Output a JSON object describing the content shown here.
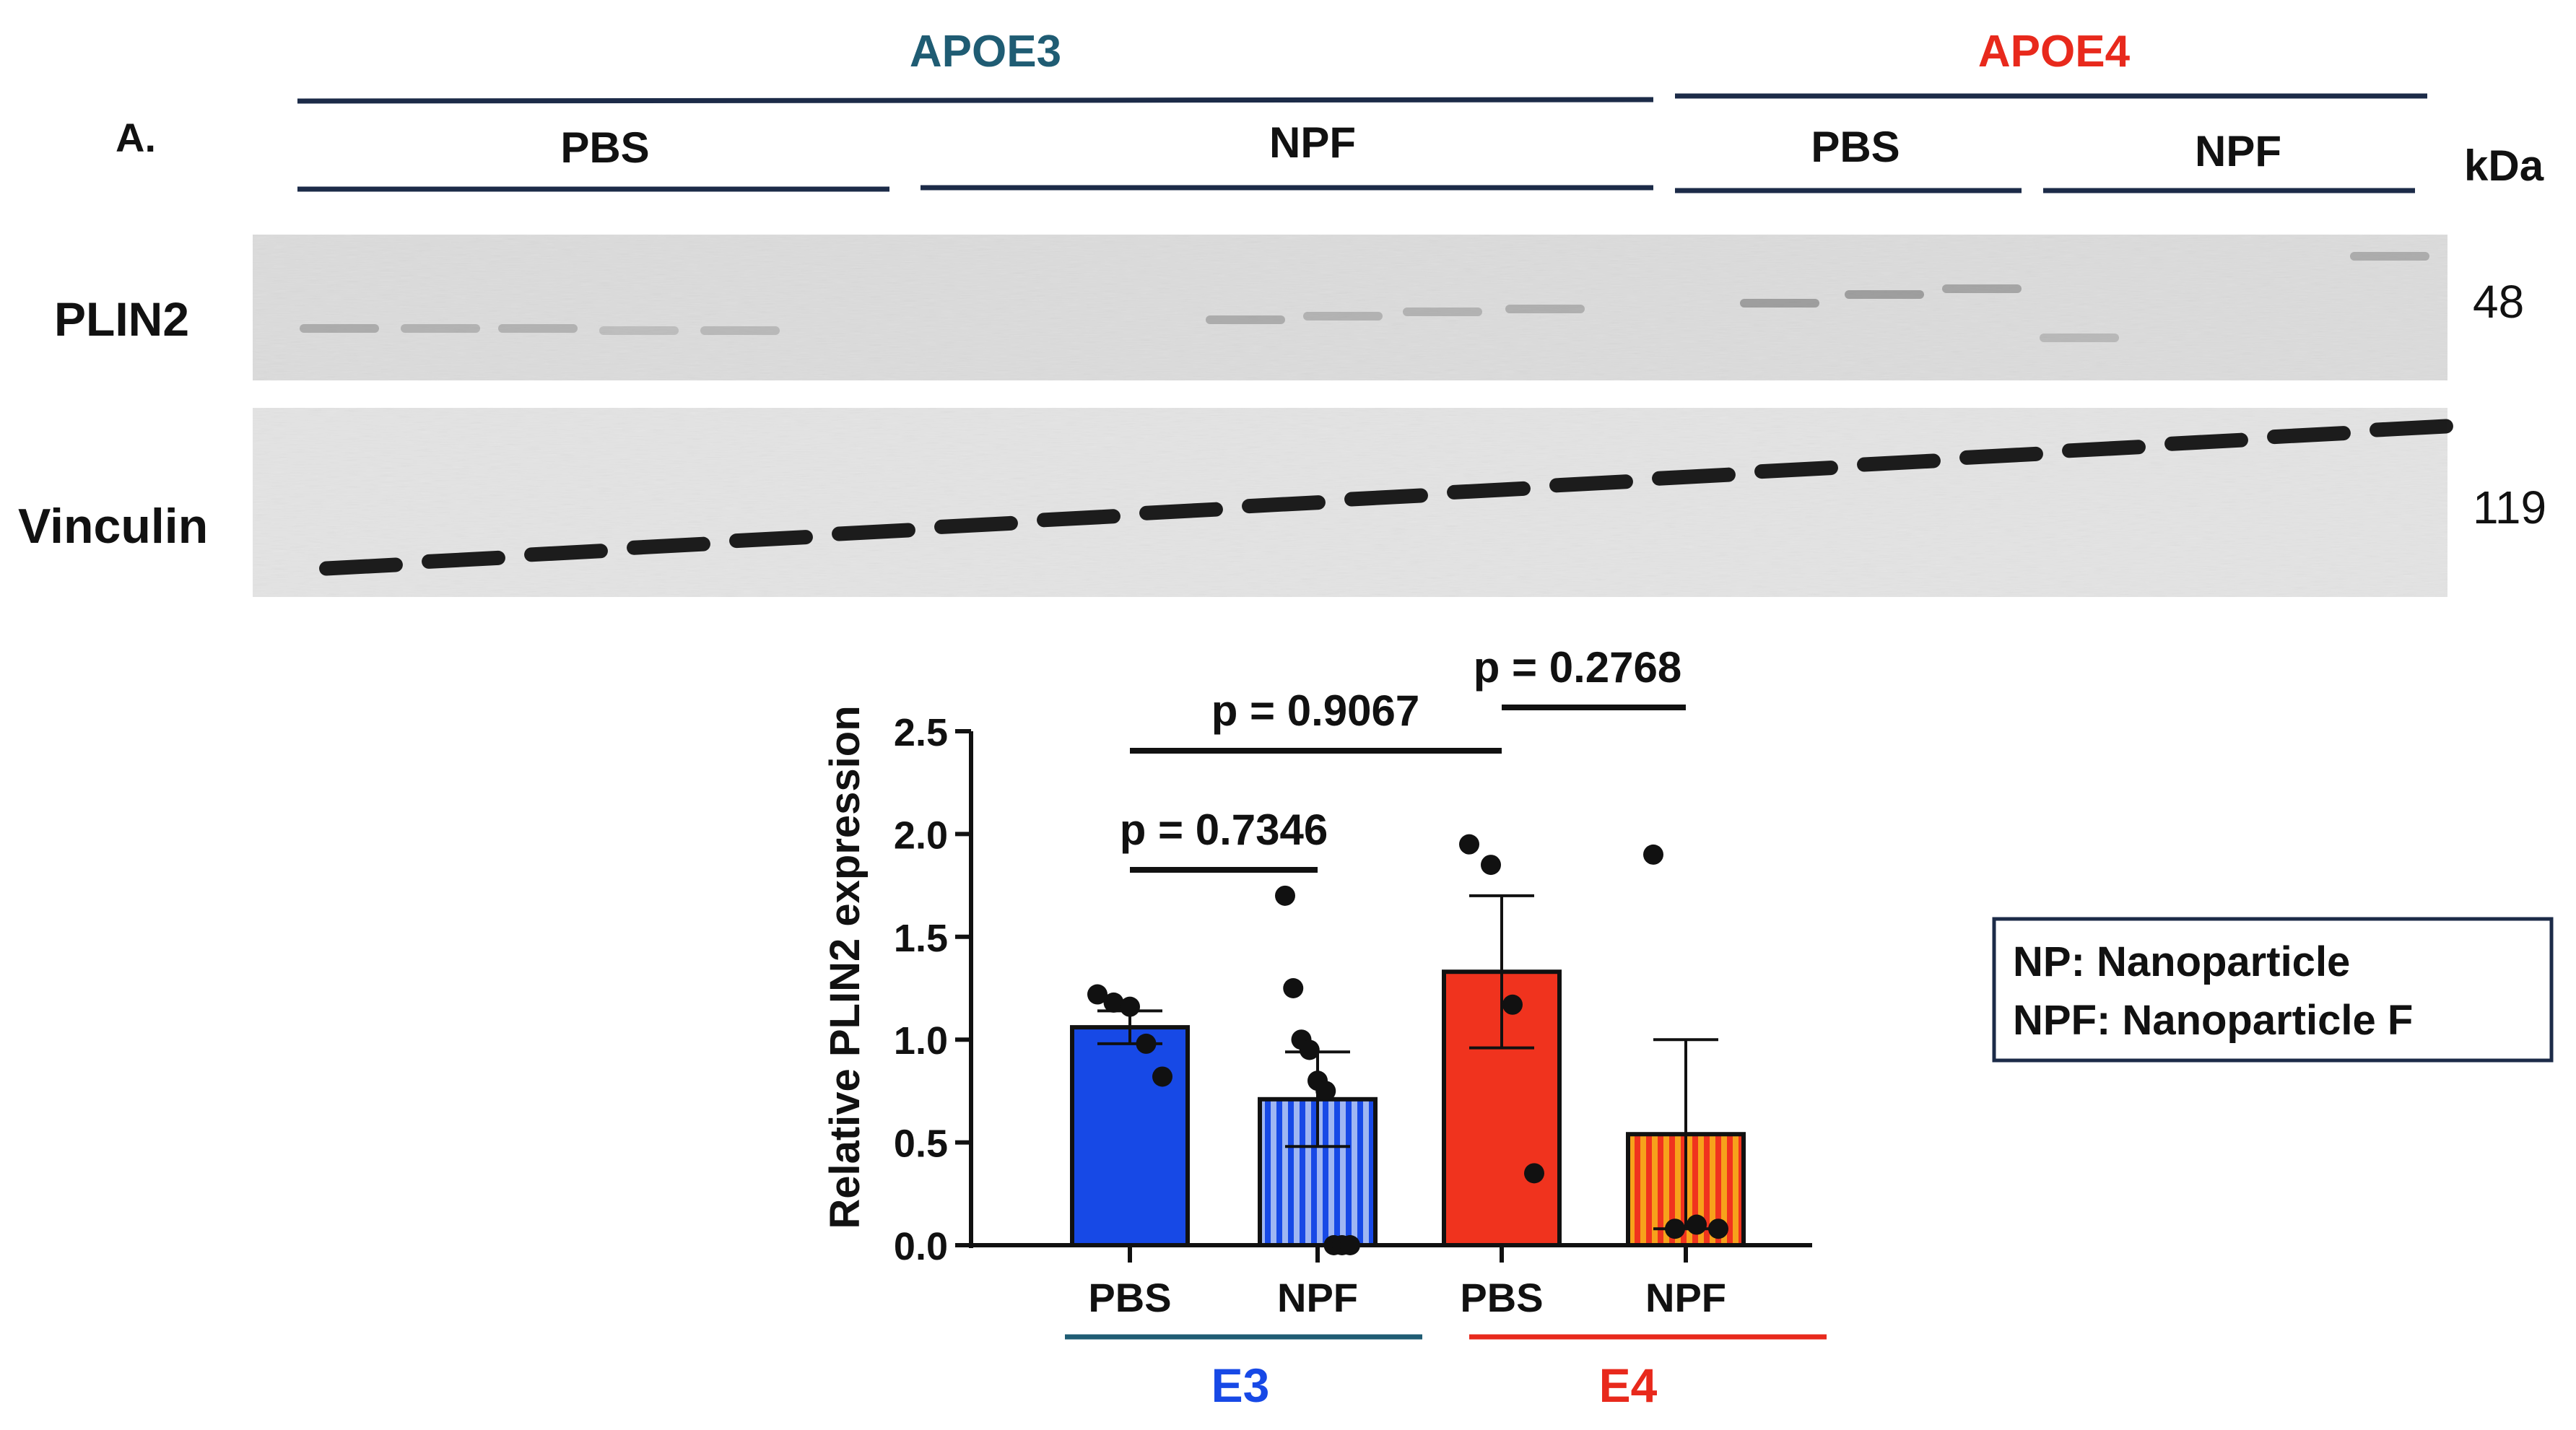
{
  "panel_label": "A.",
  "groups": {
    "apoe3": {
      "label": "APOE3",
      "color": "#1f5c73"
    },
    "apoe4": {
      "label": "APOE4",
      "color": "#e8291c"
    }
  },
  "treatments": {
    "apoe3_pbs": "PBS",
    "apoe3_npf": "NPF",
    "apoe4_pbs": "PBS",
    "apoe4_npf": "NPF"
  },
  "blot": {
    "kda_label": "kDa",
    "rows": [
      {
        "name": "PLIN2",
        "kda": "48"
      },
      {
        "name": "Vinculin",
        "kda": "119"
      }
    ]
  },
  "legend": {
    "line1": "NP: Nanoparticle",
    "line2": "NPF: Nanoparticle F"
  },
  "colors": {
    "e3_bar": "#1749e6",
    "e4_bar": "#f0331e",
    "stripe_orange": "#f7a21b",
    "navy": "#1c2b48"
  },
  "chart_data": {
    "type": "bar",
    "ylabel": "Relative PLIN2 expression",
    "ylim": [
      0,
      2.5
    ],
    "yticks": [
      "0.0",
      "0.5",
      "1.0",
      "1.5",
      "2.0",
      "2.5"
    ],
    "categories": [
      "PBS",
      "NPF",
      "PBS",
      "NPF"
    ],
    "groups": [
      {
        "label": "E3",
        "color": "#1749e6"
      },
      {
        "label": "E4",
        "color": "#e8291c"
      }
    ],
    "bars": [
      {
        "category": "PBS",
        "group": "E3",
        "mean": 1.06,
        "sem": 0.08,
        "points": [
          1.22,
          1.18,
          1.16,
          0.98,
          0.82
        ],
        "pattern": "solid"
      },
      {
        "category": "NPF",
        "group": "E3",
        "mean": 0.71,
        "sem": 0.23,
        "points": [
          1.7,
          1.25,
          1.0,
          0.95,
          0.8,
          0.75,
          0.0,
          0.0,
          0.0
        ],
        "pattern": "striped"
      },
      {
        "category": "PBS",
        "group": "E4",
        "mean": 1.33,
        "sem": 0.37,
        "points": [
          1.95,
          1.85,
          1.17,
          0.35
        ],
        "pattern": "solid"
      },
      {
        "category": "NPF",
        "group": "E4",
        "mean": 0.54,
        "sem": 0.46,
        "points": [
          1.9,
          0.08,
          0.1,
          0.08
        ],
        "pattern": "striped"
      }
    ],
    "comparisons": [
      {
        "label": "p = 0.7346",
        "from": 0,
        "to": 1
      },
      {
        "label": "p = 0.9067",
        "from": 0,
        "to": 2
      },
      {
        "label": "p = 0.2768",
        "from": 2,
        "to": 3
      }
    ]
  }
}
